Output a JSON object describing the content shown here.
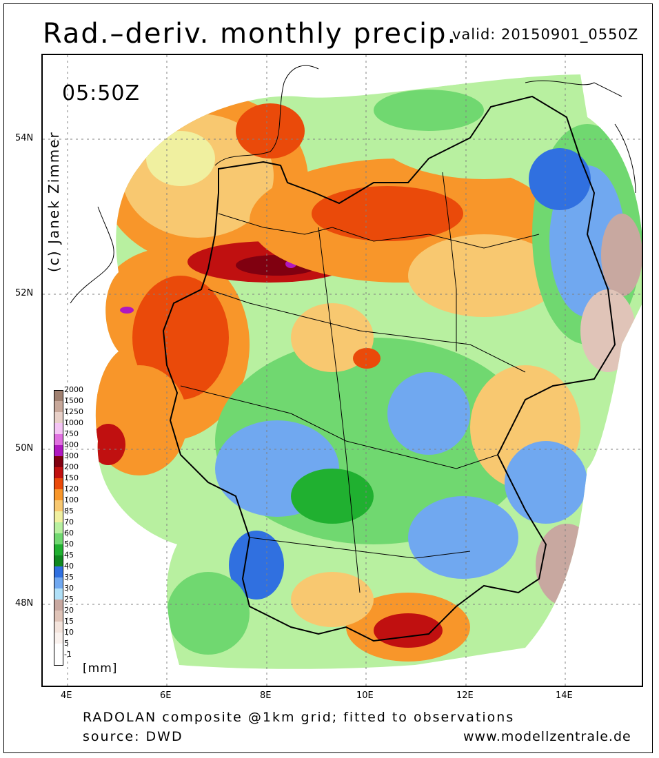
{
  "title": "Rad.–deriv. monthly precip.",
  "valid": "valid: 20150901_0550Z",
  "timestamp": "05:50Z",
  "copyright": "(c) Janek Zimmer",
  "latitudes": [
    "54N",
    "52N",
    "50N",
    "48N"
  ],
  "longitudes": [
    "4E",
    "6E",
    "8E",
    "10E",
    "12E",
    "14E"
  ],
  "legend": {
    "unit": "[mm]",
    "bins": [
      {
        "label": "2000",
        "color": "#a08070"
      },
      {
        "label": "1500",
        "color": "#c8a89a"
      },
      {
        "label": "1250",
        "color": "#e8d0c8"
      },
      {
        "label": "1000",
        "color": "#f4c4f4"
      },
      {
        "label": "750",
        "color": "#e070e0"
      },
      {
        "label": "500",
        "color": "#b018c0"
      },
      {
        "label": "300",
        "color": "#800010"
      },
      {
        "label": "200",
        "color": "#c01010"
      },
      {
        "label": "150",
        "color": "#ea4a0a"
      },
      {
        "label": "120",
        "color": "#f8962a"
      },
      {
        "label": "100",
        "color": "#f8c870"
      },
      {
        "label": "85",
        "color": "#f0f0a0"
      },
      {
        "label": "70",
        "color": "#b8f0a0"
      },
      {
        "label": "60",
        "color": "#70d870"
      },
      {
        "label": "50",
        "color": "#20b030"
      },
      {
        "label": "45",
        "color": "#108820"
      },
      {
        "label": "40",
        "color": "#3070e0"
      },
      {
        "label": "35",
        "color": "#70a8f0"
      },
      {
        "label": "30",
        "color": "#b0e0f8"
      },
      {
        "label": "25",
        "color": "#c8a8a0"
      },
      {
        "label": "20",
        "color": "#e0c4b8"
      },
      {
        "label": "15",
        "color": "#f4e4dc"
      },
      {
        "label": "10",
        "color": "#faf2ee"
      },
      {
        "label": "5",
        "color": "#ffffff"
      },
      {
        "label": "-1",
        "color": "#ffffff"
      }
    ]
  },
  "footer": {
    "line1": "RADOLAN composite @1km grid; fitted to observations",
    "line2": "source: DWD",
    "site": "www.modellzentrale.de"
  }
}
